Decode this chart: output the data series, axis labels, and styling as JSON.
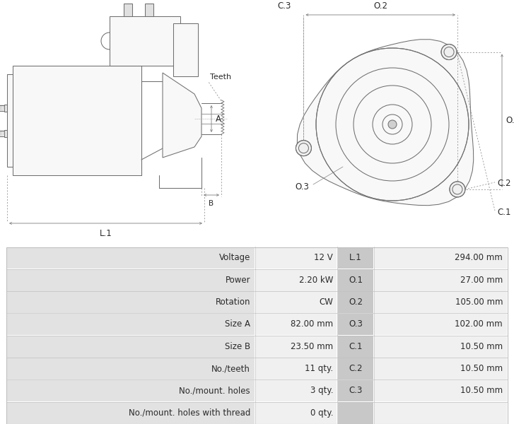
{
  "table_rows": [
    [
      "Voltage",
      "12 V",
      "L.1",
      "294.00 mm"
    ],
    [
      "Power",
      "2.20 kW",
      "O.1",
      "27.00 mm"
    ],
    [
      "Rotation",
      "CW",
      "O.2",
      "105.00 mm"
    ],
    [
      "Size A",
      "82.00 mm",
      "O.3",
      "102.00 mm"
    ],
    [
      "Size B",
      "23.50 mm",
      "C.1",
      "10.50 mm"
    ],
    [
      "No./teeth",
      "11 qty.",
      "C.2",
      "10.50 mm"
    ],
    [
      "No./mount. holes",
      "3 qty.",
      "C.3",
      "10.50 mm"
    ],
    [
      "No./mount. holes with thread",
      "0 qty.",
      "",
      ""
    ]
  ],
  "bg_label": "#e2e2e2",
  "bg_value": "#f0f0f0",
  "bg_dim_lbl": "#c8c8c8",
  "bg_dim_val": "#f0f0f0",
  "border": "#c0c0c0",
  "text_color": "#2a2a2a",
  "font_size": 8.5,
  "line_color": "#707070",
  "dim_color": "#808080",
  "lw": 0.75
}
